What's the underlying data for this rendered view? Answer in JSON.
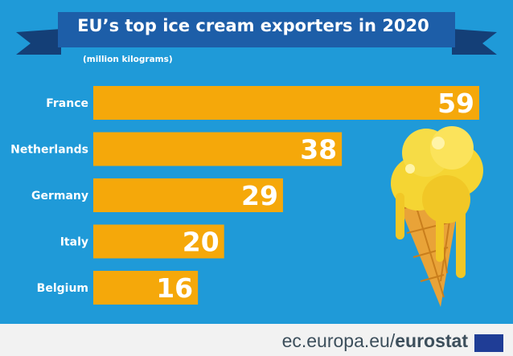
{
  "chart_data": {
    "type": "bar",
    "orientation": "horizontal",
    "title": "EU’s top ice cream exporters in 2020",
    "unit": "(million kilograms)",
    "categories": [
      "France",
      "Netherlands",
      "Germany",
      "Italy",
      "Belgium"
    ],
    "values": [
      59,
      38,
      29,
      20,
      16
    ],
    "xlim": [
      0,
      59
    ],
    "value_labels": true
  },
  "footer": {
    "site": "ec.europa.eu/",
    "brand": "eurostat"
  },
  "colors": {
    "background": "#1f9ad8",
    "bar": "#f5a80a",
    "ribbon": "#1d5ea8",
    "ribbon_tail": "#143f77",
    "text": "#ffffff",
    "footer_bg": "#f2f2f2"
  }
}
